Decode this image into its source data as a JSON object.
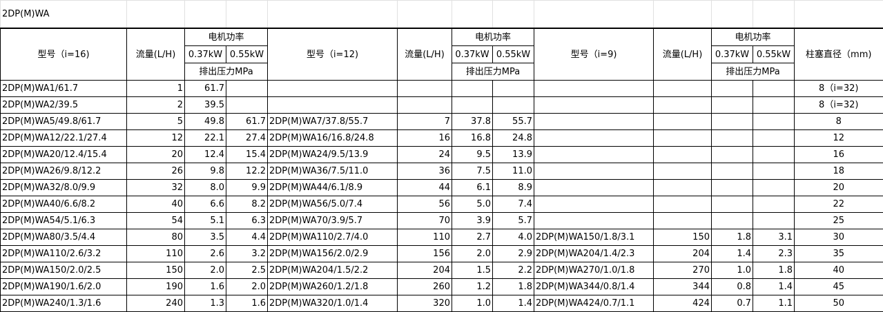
{
  "title": "2DP(M)WA",
  "headers": {
    "model_i16": "型号（i=16)",
    "model_i12": "型号（i=12)",
    "model_i9": "型号（i=9)",
    "flow": "流量(L/H)",
    "motor_power": "电机功率",
    "kw037": "0.37kW",
    "kw055": "0.55kW",
    "pressure": "排出压力MPa",
    "plunger_diameter": "柱塞直径（mm)"
  },
  "rows": [
    [
      "2DP(M)WA1/61.7",
      "1",
      "61.7",
      "",
      "",
      "",
      "",
      "",
      "",
      "",
      "",
      "",
      "8（i=32)"
    ],
    [
      "2DP(M)WA2/39.5",
      "2",
      "39.5",
      "",
      "",
      "",
      "",
      "",
      "",
      "",
      "",
      "",
      "8（i=32)"
    ],
    [
      "2DP(M)WA5/49.8/61.7",
      "5",
      "49.8",
      "61.7",
      "2DP(M)WA7/37.8/55.7",
      "7",
      "37.8",
      "55.7",
      "",
      "",
      "",
      "",
      "8"
    ],
    [
      "2DP(M)WA12/22.1/27.4",
      "12",
      "22.1",
      "27.4",
      "2DP(M)WA16/16.8/24.8",
      "16",
      "16.8",
      "24.8",
      "",
      "",
      "",
      "",
      "12"
    ],
    [
      "2DP(M)WA20/12.4/15.4",
      "20",
      "12.4",
      "15.4",
      "2DP(M)WA24/9.5/13.9",
      "24",
      "9.5",
      "13.9",
      "",
      "",
      "",
      "",
      "16"
    ],
    [
      "2DP(M)WA26/9.8/12.2",
      "26",
      "9.8",
      "12.2",
      "2DP(M)WA36/7.5/11.0",
      "36",
      "7.5",
      "11.0",
      "",
      "",
      "",
      "",
      "18"
    ],
    [
      "2DP(M)WA32/8.0/9.9",
      "32",
      "8.0",
      "9.9",
      "2DP(M)WA44/6.1/8.9",
      "44",
      "6.1",
      "8.9",
      "",
      "",
      "",
      "",
      "20"
    ],
    [
      "2DP(M)WA40/6.6/8.2",
      "40",
      "6.6",
      "8.2",
      "2DP(M)WA56/5.0/7.4",
      "56",
      "5.0",
      "7.4",
      "",
      "",
      "",
      "",
      "22"
    ],
    [
      "2DP(M)WA54/5.1/6.3",
      "54",
      "5.1",
      "6.3",
      "2DP(M)WA70/3.9/5.7",
      "70",
      "3.9",
      "5.7",
      "",
      "",
      "",
      "",
      "25"
    ],
    [
      "2DP(M)WA80/3.5/4.4",
      "80",
      "3.5",
      "4.4",
      "2DP(M)WA110/2.7/4.0",
      "110",
      "2.7",
      "4.0",
      "2DP(M)WA150/1.8/3.1",
      "150",
      "1.8",
      "3.1",
      "30"
    ],
    [
      "2DP(M)WA110/2.6/3.2",
      "110",
      "2.6",
      "3.2",
      "2DP(M)WA156/2.0/2.9",
      "156",
      "2.0",
      "2.9",
      "2DP(M)WA204/1.4/2.3",
      "204",
      "1.4",
      "2.3",
      "35"
    ],
    [
      "2DP(M)WA150/2.0/2.5",
      "150",
      "2.0",
      "2.5",
      "2DP(M)WA204/1.5/2.2",
      "204",
      "1.5",
      "2.2",
      "2DP(M)WA270/1.0/1.8",
      "270",
      "1.0",
      "1.8",
      "40"
    ],
    [
      "2DP(M)WA190/1.6/2.0",
      "190",
      "1.6",
      "2.0",
      "2DP(M)WA260/1.2/1.8",
      "260",
      "1.2",
      "1.8",
      "2DP(M)WA344/0.8/1.4",
      "344",
      "0.8",
      "1.4",
      "45"
    ],
    [
      "2DP(M)WA240/1.3/1.6",
      "240",
      "1.3",
      "1.6",
      "2DP(M)WA320/1.0/1.4",
      "320",
      "1.0",
      "1.4",
      "2DP(M)WA424/0.7/1.1",
      "424",
      "0.7",
      "1.1",
      "50"
    ]
  ]
}
